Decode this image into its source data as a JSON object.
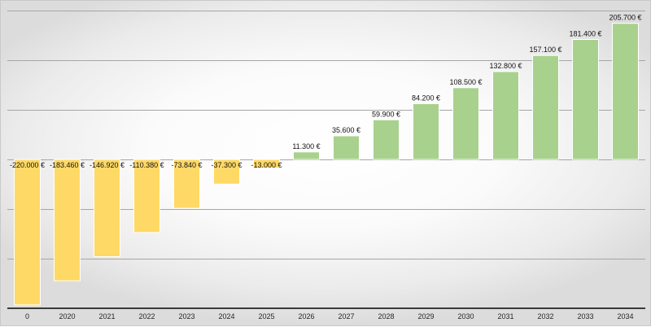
{
  "chart_data": {
    "type": "bar",
    "title": "",
    "xlabel": "",
    "ylabel": "",
    "categories": [
      "0",
      "2020",
      "2021",
      "2022",
      "2023",
      "2024",
      "2025",
      "2026",
      "2027",
      "2028",
      "2029",
      "2030",
      "2031",
      "2032",
      "2033",
      "2034"
    ],
    "values": [
      -220000,
      -183460,
      -146920,
      -110380,
      -73840,
      -37300,
      -13000,
      11300,
      35600,
      59900,
      84200,
      108500,
      132800,
      157100,
      181400,
      205700
    ],
    "data_labels": [
      "-220.000 €",
      "-183.460 €",
      "-146.920 €",
      "-110.380 €",
      "-73.840 €",
      "-37.300 €",
      "-13.000 €",
      "11.300 €",
      "35.600 €",
      "59.900 €",
      "84.200 €",
      "108.500 €",
      "132.800 €",
      "157.100 €",
      "181.400 €",
      "205.700 €"
    ],
    "ylim": [
      -225000,
      225000
    ],
    "gridlines": [
      -150000,
      -75000,
      0,
      75000,
      150000,
      225000
    ],
    "grid": true,
    "legend": "none",
    "colors": {
      "negative": "#ffd966",
      "positive": "#a9d18e",
      "grid": "#a6a6a6",
      "axis": "#3a3a3a"
    }
  }
}
